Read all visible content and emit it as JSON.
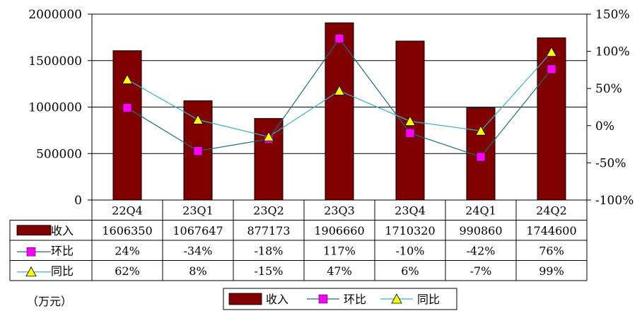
{
  "chart_data": {
    "type": "bar",
    "categories": [
      "22Q4",
      "23Q1",
      "23Q2",
      "23Q3",
      "23Q4",
      "24Q1",
      "24Q2"
    ],
    "series": [
      {
        "name": "收入",
        "type": "bar",
        "axis": "left",
        "color": "#800000",
        "values": [
          1606350,
          1067647,
          877173,
          1906660,
          1710320,
          990860,
          1744600
        ],
        "labels": [
          "1606350",
          "1067647",
          "877173",
          "1906660",
          "1710320",
          "990860",
          "1744600"
        ]
      },
      {
        "name": "环比",
        "type": "line",
        "axis": "right",
        "color": "#FF00FF",
        "line_color": "#1F6E7A",
        "marker": "square",
        "values": [
          24,
          -34,
          -18,
          117,
          -10,
          -42,
          76
        ],
        "labels": [
          "24%",
          "-34%",
          "-18%",
          "117%",
          "-10%",
          "-42%",
          "76%"
        ]
      },
      {
        "name": "同比",
        "type": "line",
        "axis": "right",
        "color": "#FFFF00",
        "line_color": "#3BB3C3",
        "marker": "triangle",
        "values": [
          62,
          8,
          -15,
          47,
          6,
          -7,
          99
        ],
        "labels": [
          "62%",
          "8%",
          "-15%",
          "47%",
          "6%",
          "-7%",
          "99%"
        ]
      }
    ],
    "y_left": {
      "min": 0,
      "max": 2000000,
      "ticks": [
        "0",
        "500000",
        "1000000",
        "1500000",
        "2000000"
      ],
      "tick_values": [
        0,
        500000,
        1000000,
        1500000,
        2000000
      ]
    },
    "y_right": {
      "min": -100,
      "max": 150,
      "ticks": [
        "-100%",
        "-50%",
        "0%",
        "50%",
        "100%",
        "150%"
      ],
      "tick_values": [
        -100,
        -50,
        0,
        50,
        100,
        150
      ]
    },
    "unit_label": "（万元）",
    "legend": {
      "position": "bottom-center",
      "items": [
        "收入",
        "环比",
        "同比"
      ]
    },
    "grid": true
  }
}
